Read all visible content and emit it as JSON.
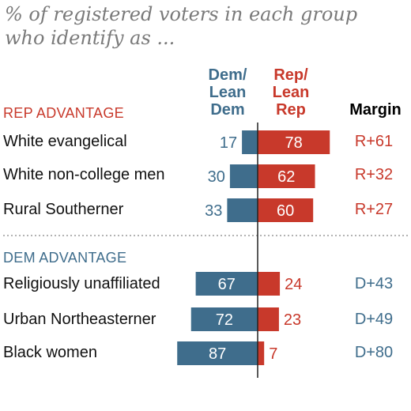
{
  "header": {
    "title_line1": "% of registered voters in each group",
    "title_line2": "who identify as ..."
  },
  "columns": {
    "dem": [
      "Dem/",
      "Lean",
      "Dem"
    ],
    "rep": [
      "Rep/",
      "Lean",
      "Rep"
    ],
    "margin": "Margin"
  },
  "colors": {
    "dem": "#3f6d8c",
    "rep": "#c8392b"
  },
  "chart_data": {
    "type": "bar",
    "orientation": "horizontal-diverging",
    "categories": [
      "White evangelical",
      "White non-college men",
      "Rural Southerner",
      "Religiously unaffiliated",
      "Urban Northeasterner",
      "Black women"
    ],
    "series": [
      {
        "name": "Dem/Lean Dem",
        "values": [
          17,
          30,
          33,
          67,
          72,
          87
        ]
      },
      {
        "name": "Rep/Lean Rep",
        "values": [
          78,
          62,
          60,
          24,
          23,
          7
        ]
      }
    ],
    "margins": [
      "R+61",
      "R+32",
      "R+27",
      "D+43",
      "D+49",
      "D+80"
    ],
    "groups": [
      {
        "label": "REP ADVANTAGE",
        "categories": [
          "White evangelical",
          "White non-college men",
          "Rural Southerner"
        ]
      },
      {
        "label": "DEM ADVANTAGE",
        "categories": [
          "Religiously unaffiliated",
          "Urban Northeasterner",
          "Black women"
        ]
      }
    ]
  }
}
